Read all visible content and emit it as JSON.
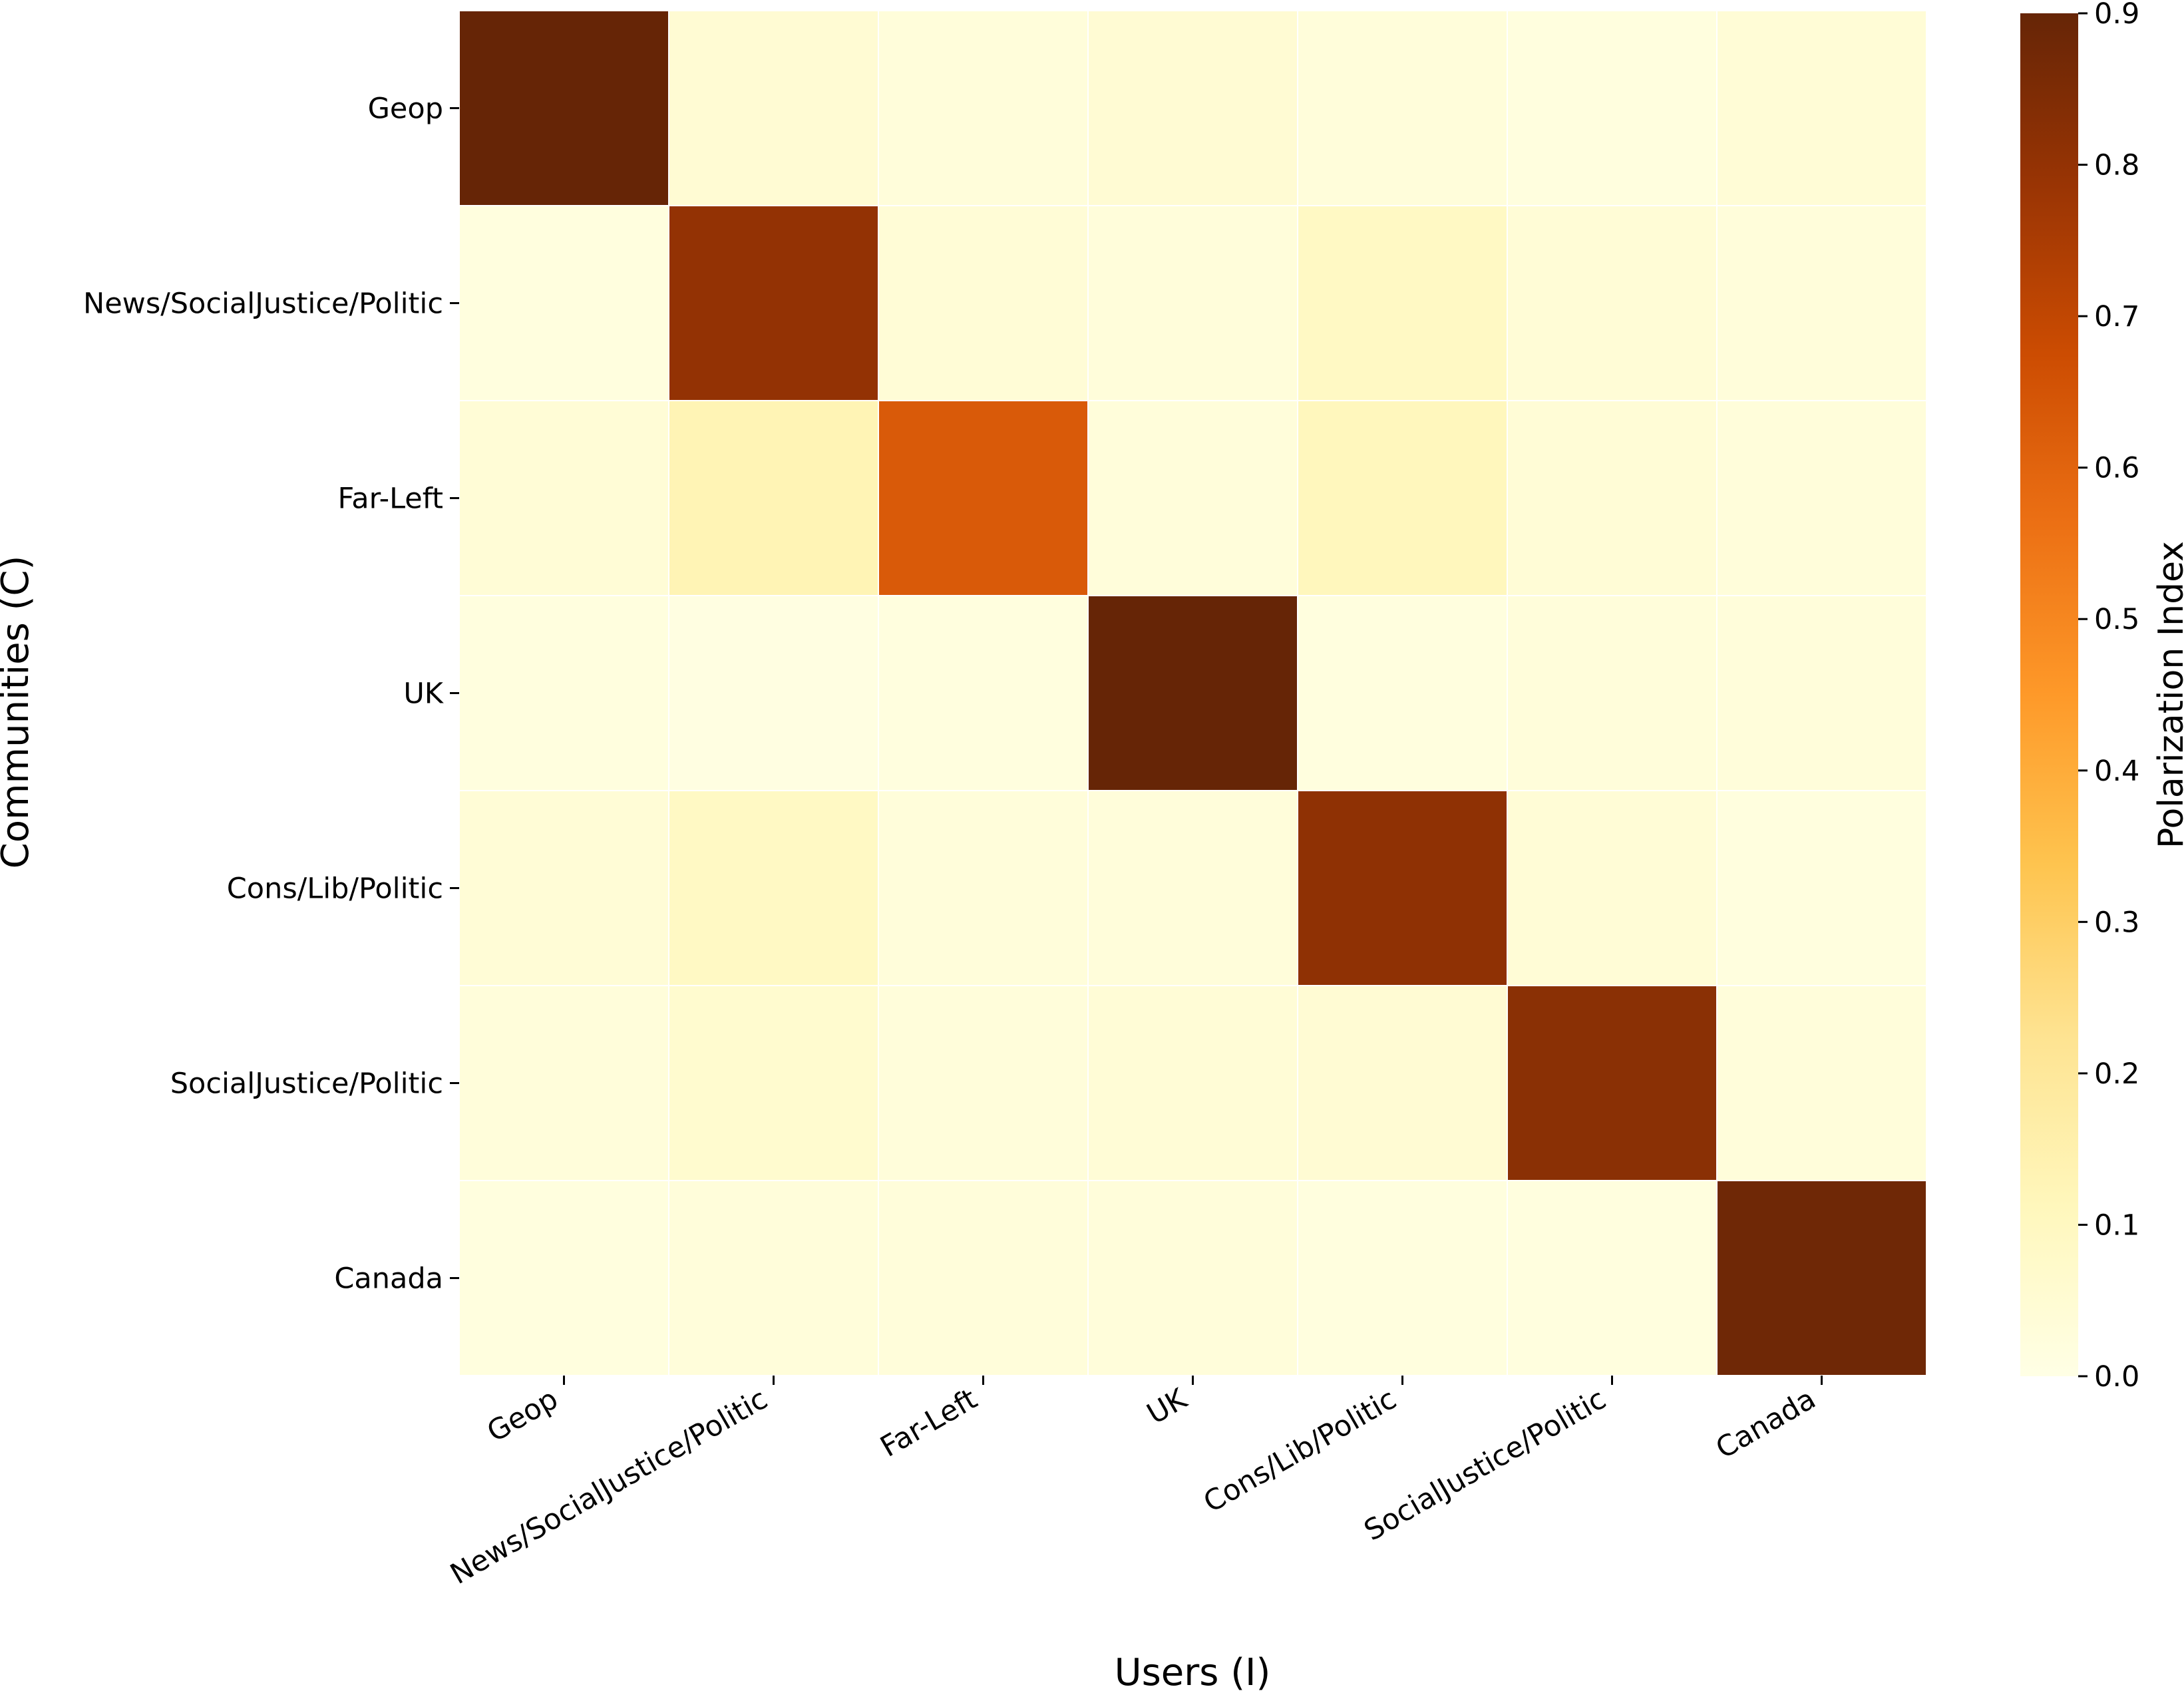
{
  "chart_data": {
    "type": "heatmap",
    "title": "",
    "xlabel": "Users (I)",
    "ylabel": "Communities (C)",
    "x_categories": [
      "Geop",
      "News/SocialJustice/Politic",
      "Far-Left",
      "UK",
      "Cons/Lib/Politic",
      "SocialJustice/Politic",
      "Canada"
    ],
    "y_categories": [
      "Geop",
      "News/SocialJustice/Politic",
      "Far-Left",
      "UK",
      "Cons/Lib/Politic",
      "SocialJustice/Politic",
      "Canada"
    ],
    "values": [
      [
        0.9,
        0.05,
        0.03,
        0.05,
        0.03,
        0.02,
        0.04
      ],
      [
        0.02,
        0.8,
        0.04,
        0.03,
        0.09,
        0.04,
        0.03
      ],
      [
        0.04,
        0.13,
        0.63,
        0.03,
        0.11,
        0.04,
        0.03
      ],
      [
        0.02,
        0.01,
        0.02,
        0.9,
        0.02,
        0.03,
        0.03
      ],
      [
        0.04,
        0.09,
        0.03,
        0.03,
        0.81,
        0.04,
        0.02
      ],
      [
        0.03,
        0.06,
        0.03,
        0.04,
        0.05,
        0.82,
        0.03
      ],
      [
        0.02,
        0.03,
        0.03,
        0.03,
        0.02,
        0.02,
        0.88
      ]
    ],
    "vmin": 0.0,
    "vmax": 0.9,
    "colormap": "YlOrBr",
    "colorbar": {
      "label": "Polarization Index",
      "ticks": [
        "0.0",
        "0.1",
        "0.2",
        "0.3",
        "0.4",
        "0.5",
        "0.6",
        "0.7",
        "0.8",
        "0.9"
      ],
      "stops": [
        "#ffffe5",
        "#fff7bc",
        "#fee391",
        "#fec44f",
        "#fe9929",
        "#ec7014",
        "#cc4c02",
        "#993404",
        "#662506"
      ]
    }
  }
}
